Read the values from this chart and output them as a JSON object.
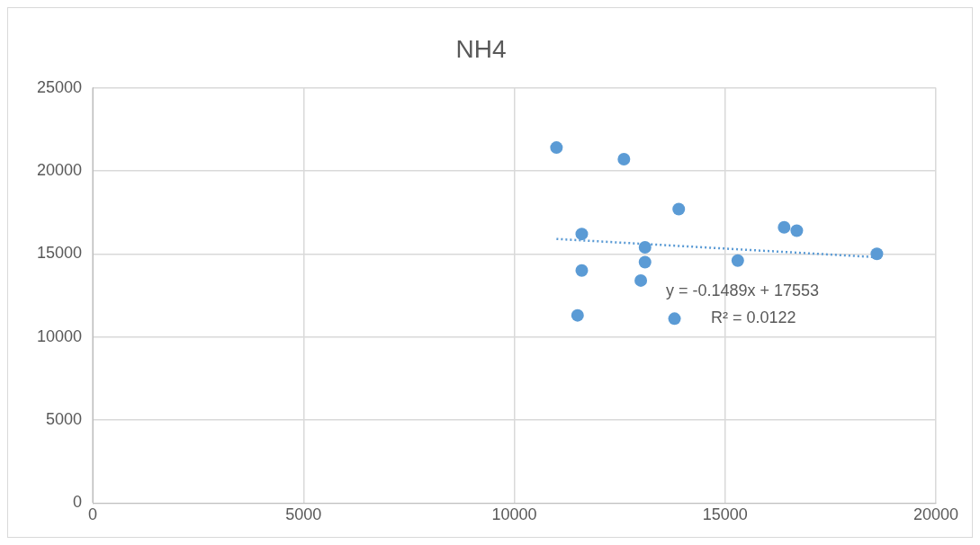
{
  "chart_data": {
    "type": "scatter",
    "title": "NH4",
    "xlim": [
      0,
      20000
    ],
    "xticks": [
      0,
      5000,
      10000,
      15000,
      20000
    ],
    "ylim": [
      0,
      25000
    ],
    "yticks": [
      0,
      5000,
      10000,
      15000,
      20000,
      25000
    ],
    "grid": true,
    "legend": false,
    "marker": "circle",
    "series": [
      {
        "type": "scatter",
        "color": "#5b9bd5",
        "x": [
          11000,
          12600,
          13900,
          11600,
          16400,
          16700,
          13100,
          18600,
          15300,
          13100,
          11600,
          13000,
          11500,
          13800
        ],
        "values": [
          21400,
          20700,
          17700,
          16200,
          16600,
          16400,
          15400,
          15000,
          14600,
          14500,
          14000,
          13400,
          11300,
          11100
        ]
      },
      {
        "type": "line",
        "color": "#5b9bd5",
        "line_style": "dotted",
        "marker": "none",
        "x": [
          11000,
          18600
        ],
        "values": [
          15900,
          14800
        ]
      }
    ],
    "annotations": [
      "y = -0.1489x + 17553",
      "R² = 0.0122"
    ]
  }
}
